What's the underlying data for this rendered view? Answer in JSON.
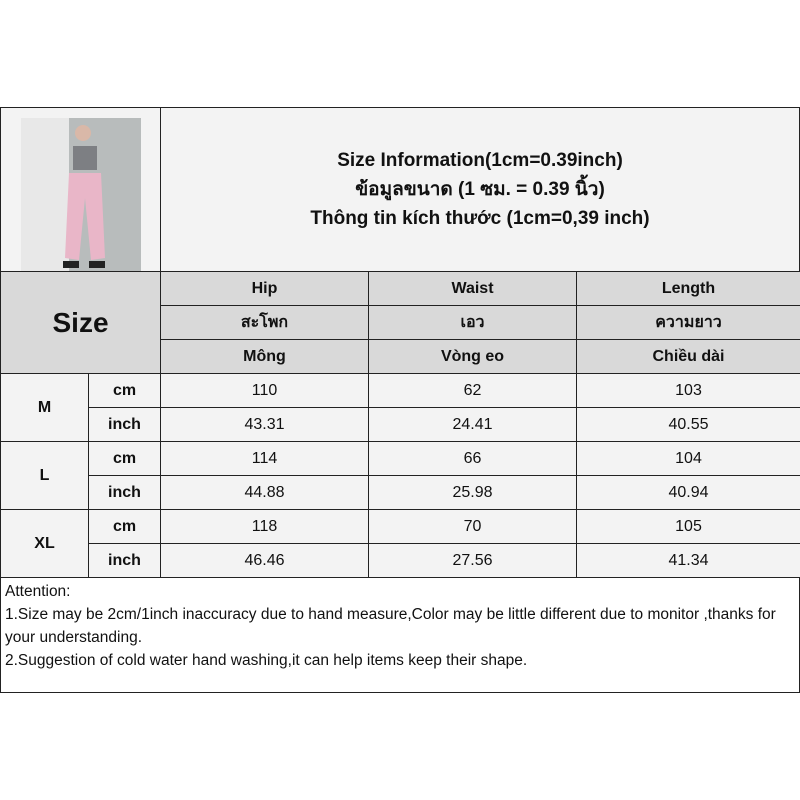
{
  "title": {
    "line1": "Size Information(1cm=0.39inch)",
    "line2": "ข้อมูลขนาด (1 ซม. = 0.39 นิ้ว)",
    "line3": "Thông tin kích thước (1cm=0,39 inch)"
  },
  "size_label": "Size",
  "columns": [
    {
      "en": "Hip",
      "th": "สะโพก",
      "vi": "Mông"
    },
    {
      "en": "Waist",
      "th": "เอว",
      "vi": "Vòng eo"
    },
    {
      "en": "Length",
      "th": "ความยาว",
      "vi": "Chiều dài"
    }
  ],
  "rows": [
    {
      "size": "M",
      "cm_label": "cm",
      "inch_label": "inch",
      "cm": [
        "110",
        "62",
        "103"
      ],
      "inch": [
        "43.31",
        "24.41",
        "40.55"
      ]
    },
    {
      "size": "L",
      "cm_label": "cm",
      "inch_label": "inch",
      "cm": [
        "114",
        "66",
        "104"
      ],
      "inch": [
        "44.88",
        "25.98",
        "40.94"
      ]
    },
    {
      "size": "XL",
      "cm_label": "cm",
      "inch_label": "inch",
      "cm": [
        "118",
        "70",
        "105"
      ],
      "inch": [
        "46.46",
        "27.56",
        "41.34"
      ]
    }
  ],
  "attention": {
    "heading": "Attention:",
    "line1": "1.Size may be 2cm/1inch inaccuracy due to hand measure,Color may be little different due to monitor ,thanks for your understanding.",
    "line2": "2.Suggestion of cold water hand washing,it can help items keep their shape."
  }
}
